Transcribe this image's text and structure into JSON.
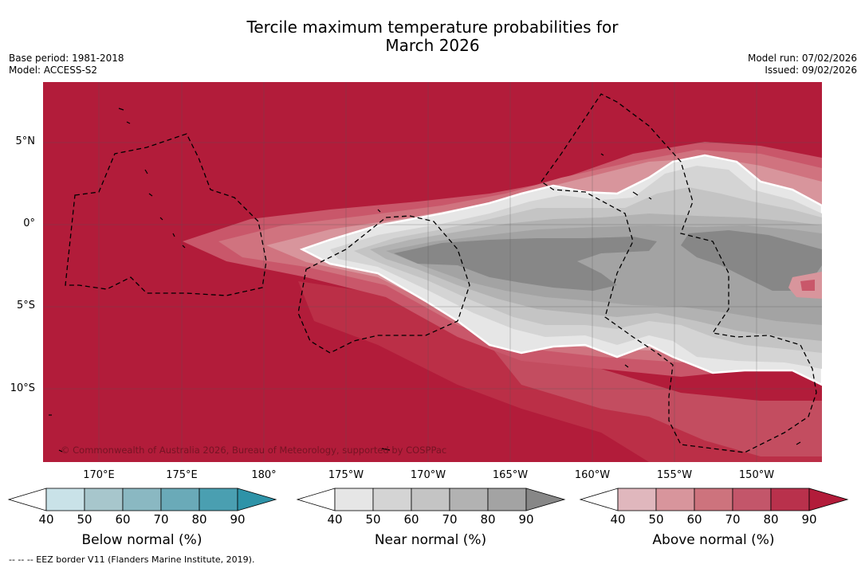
{
  "header": {
    "title_line1": "Tercile maximum temperature probabilities for",
    "title_line2": "March 2026",
    "base_period": "Base period: 1981-2018",
    "model": "Model: ACCESS-S2",
    "model_run": "Model run: 07/02/2026",
    "issued": "Issued: 09/02/2026"
  },
  "map": {
    "lat_labels": [
      "5°N",
      "0°",
      "5°S",
      "10°S"
    ],
    "lon_labels": [
      "170°E",
      "175°E",
      "180°",
      "175°W",
      "170°W",
      "165°W",
      "160°W",
      "155°W",
      "150°W"
    ],
    "credit": "© Commonwealth of Australia 2026, Bureau of Meteorology, supported by COSPPac",
    "colors": {
      "background_above": "#b21c3a",
      "above_80": "#c0374e",
      "above_70": "#c9576a",
      "above_60": "#d0737f",
      "above_50": "#d8959c",
      "near_40": "#e6e6e6",
      "near_50": "#d4d4d4",
      "near_60": "#c4c4c4",
      "near_70": "#b2b2b2",
      "near_80": "#a3a3a3",
      "near_90": "#878787"
    }
  },
  "legend": {
    "below_title": "Below normal (%)",
    "near_title": "Near normal (%)",
    "above_title": "Above normal (%)",
    "ticks": [
      "40",
      "50",
      "60",
      "70",
      "80",
      "90"
    ],
    "below_colors": [
      "#c9e2e8",
      "#a7c6cc",
      "#8ab8c2",
      "#6aaab8",
      "#4a9fb1",
      "#2e93a8"
    ],
    "near_colors": [
      "#e6e6e6",
      "#d4d4d4",
      "#c4c4c4",
      "#b2b2b2",
      "#a3a3a3",
      "#878787"
    ],
    "above_colors": [
      "#e0b7bd",
      "#d8959c",
      "#cd737d",
      "#c3566a",
      "#b9314c",
      "#b21c3a"
    ]
  },
  "footnote": "--  --  -- EEZ border V11 (Flanders Marine Institute, 2019)."
}
